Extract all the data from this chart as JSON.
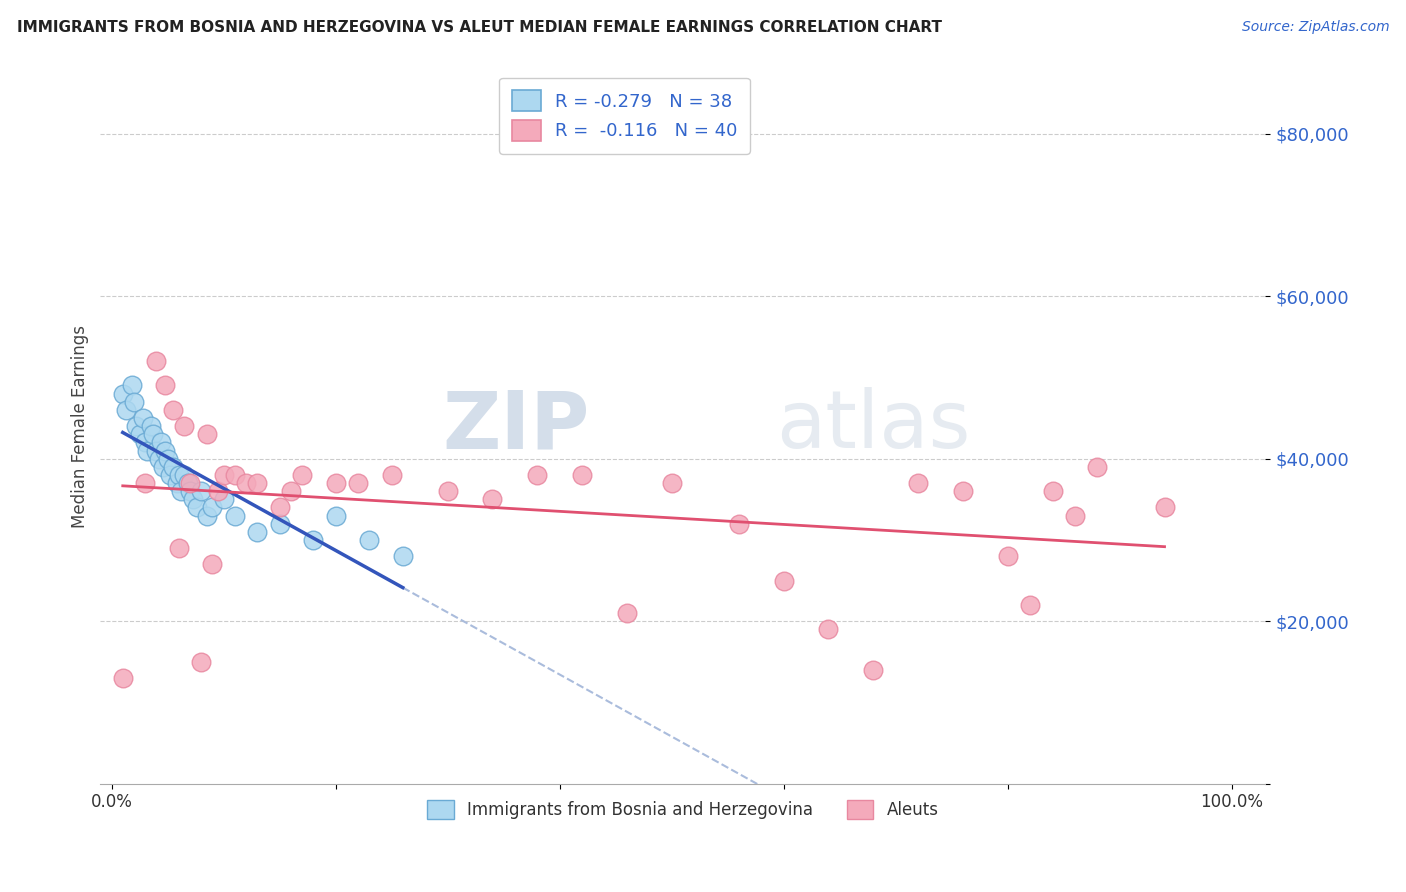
{
  "title": "IMMIGRANTS FROM BOSNIA AND HERZEGOVINA VS ALEUT MEDIAN FEMALE EARNINGS CORRELATION CHART",
  "source": "Source: ZipAtlas.com",
  "ylabel": "Median Female Earnings",
  "y_ticks": [
    0,
    20000,
    40000,
    60000,
    80000
  ],
  "y_tick_labels": [
    "",
    "$20,000",
    "$40,000",
    "$60,000",
    "$80,000"
  ],
  "x_tick_positions": [
    0.0,
    0.2,
    0.4,
    0.6,
    0.8,
    1.0
  ],
  "x_tick_labels_show": {
    "0.0": "0.0%",
    "1.0": "100.0%"
  },
  "xlim": [
    -0.01,
    1.03
  ],
  "ylim": [
    2000,
    88000
  ],
  "legend_r1": "-0.279",
  "legend_n1": "38",
  "legend_r2": "-0.116",
  "legend_n2": "40",
  "color_blue": "#ADD8F0",
  "color_blue_edge": "#6aaad4",
  "color_pink": "#F4AABB",
  "color_pink_edge": "#e888a0",
  "line_color_blue": "#3355BB",
  "line_color_pink": "#E05070",
  "dash_color": "#AABCDC",
  "background_color": "#FFFFFF",
  "watermark_zip": "ZIP",
  "watermark_atlas": "atlas",
  "blue_x": [
    0.01,
    0.013,
    0.018,
    0.02,
    0.022,
    0.025,
    0.028,
    0.03,
    0.032,
    0.035,
    0.037,
    0.04,
    0.042,
    0.044,
    0.046,
    0.048,
    0.05,
    0.052,
    0.055,
    0.058,
    0.06,
    0.062,
    0.065,
    0.068,
    0.07,
    0.073,
    0.076,
    0.08,
    0.085,
    0.09,
    0.1,
    0.11,
    0.13,
    0.15,
    0.18,
    0.2,
    0.23,
    0.26
  ],
  "blue_y": [
    48000,
    46000,
    49000,
    47000,
    44000,
    43000,
    45000,
    42000,
    41000,
    44000,
    43000,
    41000,
    40000,
    42000,
    39000,
    41000,
    40000,
    38000,
    39000,
    37000,
    38000,
    36000,
    38000,
    37000,
    36000,
    35000,
    34000,
    36000,
    33000,
    34000,
    35000,
    33000,
    31000,
    32000,
    30000,
    33000,
    30000,
    28000
  ],
  "pink_x": [
    0.01,
    0.03,
    0.04,
    0.048,
    0.055,
    0.06,
    0.065,
    0.07,
    0.08,
    0.085,
    0.09,
    0.095,
    0.1,
    0.11,
    0.12,
    0.13,
    0.15,
    0.16,
    0.17,
    0.2,
    0.22,
    0.25,
    0.3,
    0.34,
    0.38,
    0.42,
    0.46,
    0.5,
    0.56,
    0.6,
    0.64,
    0.68,
    0.72,
    0.76,
    0.8,
    0.82,
    0.84,
    0.86,
    0.88,
    0.94
  ],
  "pink_y": [
    13000,
    37000,
    52000,
    49000,
    46000,
    29000,
    44000,
    37000,
    15000,
    43000,
    27000,
    36000,
    38000,
    38000,
    37000,
    37000,
    34000,
    36000,
    38000,
    37000,
    37000,
    38000,
    36000,
    35000,
    38000,
    38000,
    21000,
    37000,
    32000,
    25000,
    19000,
    14000,
    37000,
    36000,
    28000,
    22000,
    36000,
    33000,
    39000,
    34000
  ]
}
